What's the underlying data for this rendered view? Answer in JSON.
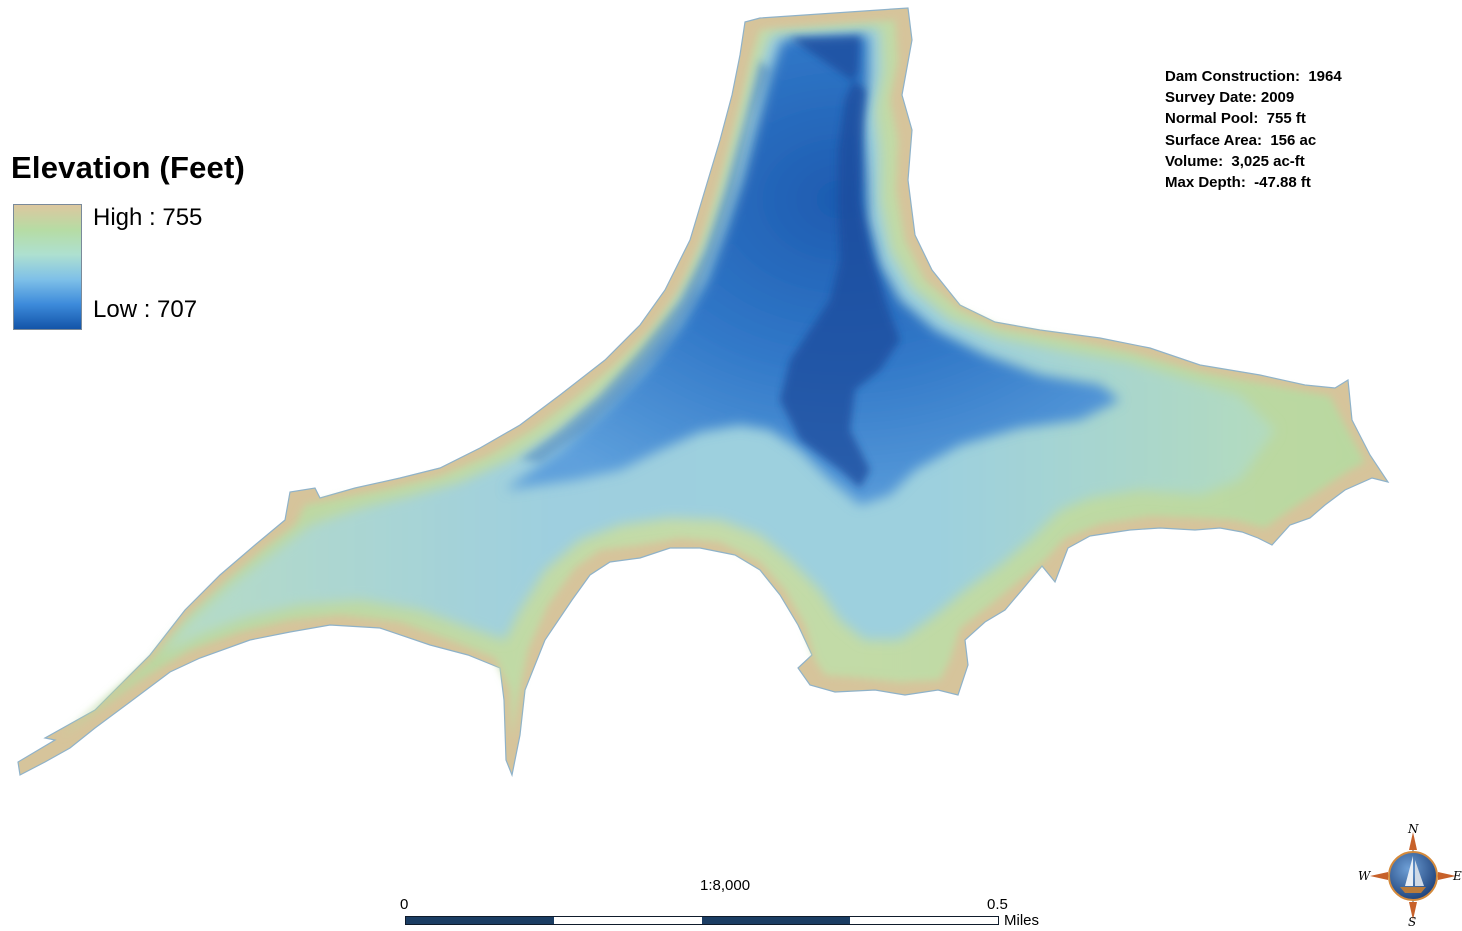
{
  "legend": {
    "title": "Elevation (Feet)",
    "high_label": "High : 755",
    "low_label": "Low : 707",
    "high_value": 755,
    "low_value": 707,
    "ramp_colors": [
      "#dcc79f",
      "#b6dca4",
      "#aee0d0",
      "#7ec0e8",
      "#3d8bdb",
      "#1354a8"
    ]
  },
  "info": {
    "lines": [
      "Dam Construction:  1964",
      "Survey Date: 2009",
      "Normal Pool:  755 ft",
      "Surface Area:  156 ac",
      "Volume:  3,025 ac-ft",
      "Max Depth:  -47.88 ft"
    ]
  },
  "scale": {
    "ratio": "1:8,000",
    "start_label": "0",
    "end_label": "0.5",
    "unit": "Miles"
  },
  "compass": {
    "north": "N",
    "south": "S",
    "east": "E",
    "west": "W"
  },
  "colors": {
    "shore": "#d9c59c",
    "shallow": "#a9d6a7",
    "mid": "#a3d2e2",
    "deep": "#3f86cf",
    "deepest": "#1a4fa0",
    "scale_bar": "#1b3d63"
  }
}
